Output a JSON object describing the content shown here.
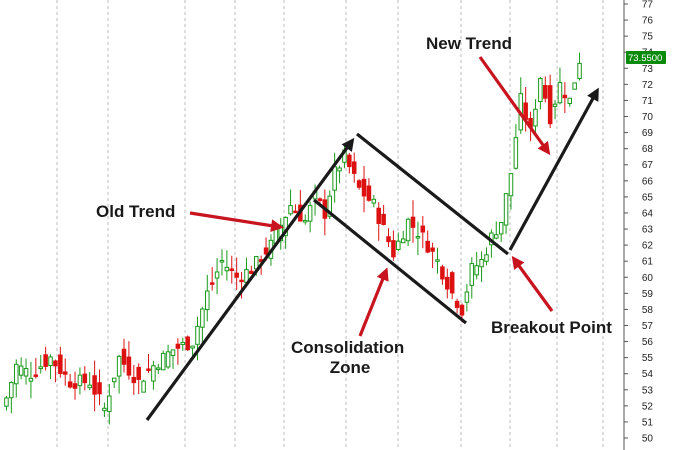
{
  "chart_data": {
    "type": "candlestick",
    "title": "",
    "xlabel": "",
    "ylabel": "",
    "ylim": [
      50,
      77
    ],
    "y_axis_side": "right",
    "y_ticks": [
      50,
      51,
      52,
      53,
      54,
      55,
      56,
      57,
      58,
      59,
      60,
      61,
      62,
      63,
      64,
      65,
      66,
      67,
      68,
      69,
      70,
      71,
      72,
      73,
      74,
      75,
      76,
      77
    ],
    "grid": "vertical dashed",
    "last_price": "73.5500",
    "colors": {
      "up": "#1a9a1a",
      "down": "#dd1111",
      "arrow_red": "#c8141e",
      "line": "#1a1a1a",
      "price_tag_bg": "#0a8a0a"
    },
    "annotations": [
      {
        "name": "old-trend",
        "lines": [
          "Old Trend"
        ]
      },
      {
        "name": "new-trend",
        "lines": [
          "New Trend"
        ]
      },
      {
        "name": "consolidation-zone",
        "lines": [
          "Consolidation",
          "Zone"
        ]
      },
      {
        "name": "breakout-point",
        "lines": [
          "Breakout Point"
        ]
      }
    ],
    "approx_close_path": [
      {
        "bar": 0,
        "close": 52.5
      },
      {
        "bar": 2,
        "close": 54.5
      },
      {
        "bar": 5,
        "close": 54.0
      },
      {
        "bar": 9,
        "close": 55.0
      },
      {
        "bar": 13,
        "close": 53.5
      },
      {
        "bar": 17,
        "close": 53.5
      },
      {
        "bar": 20,
        "close": 51.8
      },
      {
        "bar": 23,
        "close": 55.0
      },
      {
        "bar": 27,
        "close": 53.5
      },
      {
        "bar": 30,
        "close": 54.5
      },
      {
        "bar": 34,
        "close": 55.5
      },
      {
        "bar": 38,
        "close": 56.0
      },
      {
        "bar": 41,
        "close": 59.0
      },
      {
        "bar": 44,
        "close": 61.0
      },
      {
        "bar": 47,
        "close": 60.0
      },
      {
        "bar": 50,
        "close": 60.5
      },
      {
        "bar": 54,
        "close": 62.0
      },
      {
        "bar": 58,
        "close": 64.5
      },
      {
        "bar": 61,
        "close": 63.5
      },
      {
        "bar": 63,
        "close": 65.0
      },
      {
        "bar": 65,
        "close": 64.0
      },
      {
        "bar": 67,
        "close": 66.5
      },
      {
        "bar": 69,
        "close": 67.5
      },
      {
        "bar": 72,
        "close": 65.5
      },
      {
        "bar": 75,
        "close": 64.5
      },
      {
        "bar": 77,
        "close": 63.0
      },
      {
        "bar": 79,
        "close": 61.5
      },
      {
        "bar": 82,
        "close": 63.5
      },
      {
        "bar": 85,
        "close": 62.5
      },
      {
        "bar": 88,
        "close": 61.0
      },
      {
        "bar": 91,
        "close": 59.0
      },
      {
        "bar": 93,
        "close": 58.0
      },
      {
        "bar": 95,
        "close": 60.5
      },
      {
        "bar": 97,
        "close": 61.0
      },
      {
        "bar": 99,
        "close": 62.5
      },
      {
        "bar": 101,
        "close": 63.5
      },
      {
        "bar": 103,
        "close": 66.5
      },
      {
        "bar": 105,
        "close": 71.0
      },
      {
        "bar": 107,
        "close": 69.0
      },
      {
        "bar": 109,
        "close": 72.5
      },
      {
        "bar": 111,
        "close": 70.0
      },
      {
        "bar": 113,
        "close": 72.0
      },
      {
        "bar": 115,
        "close": 71.0
      },
      {
        "bar": 117,
        "close": 73.55
      }
    ]
  }
}
